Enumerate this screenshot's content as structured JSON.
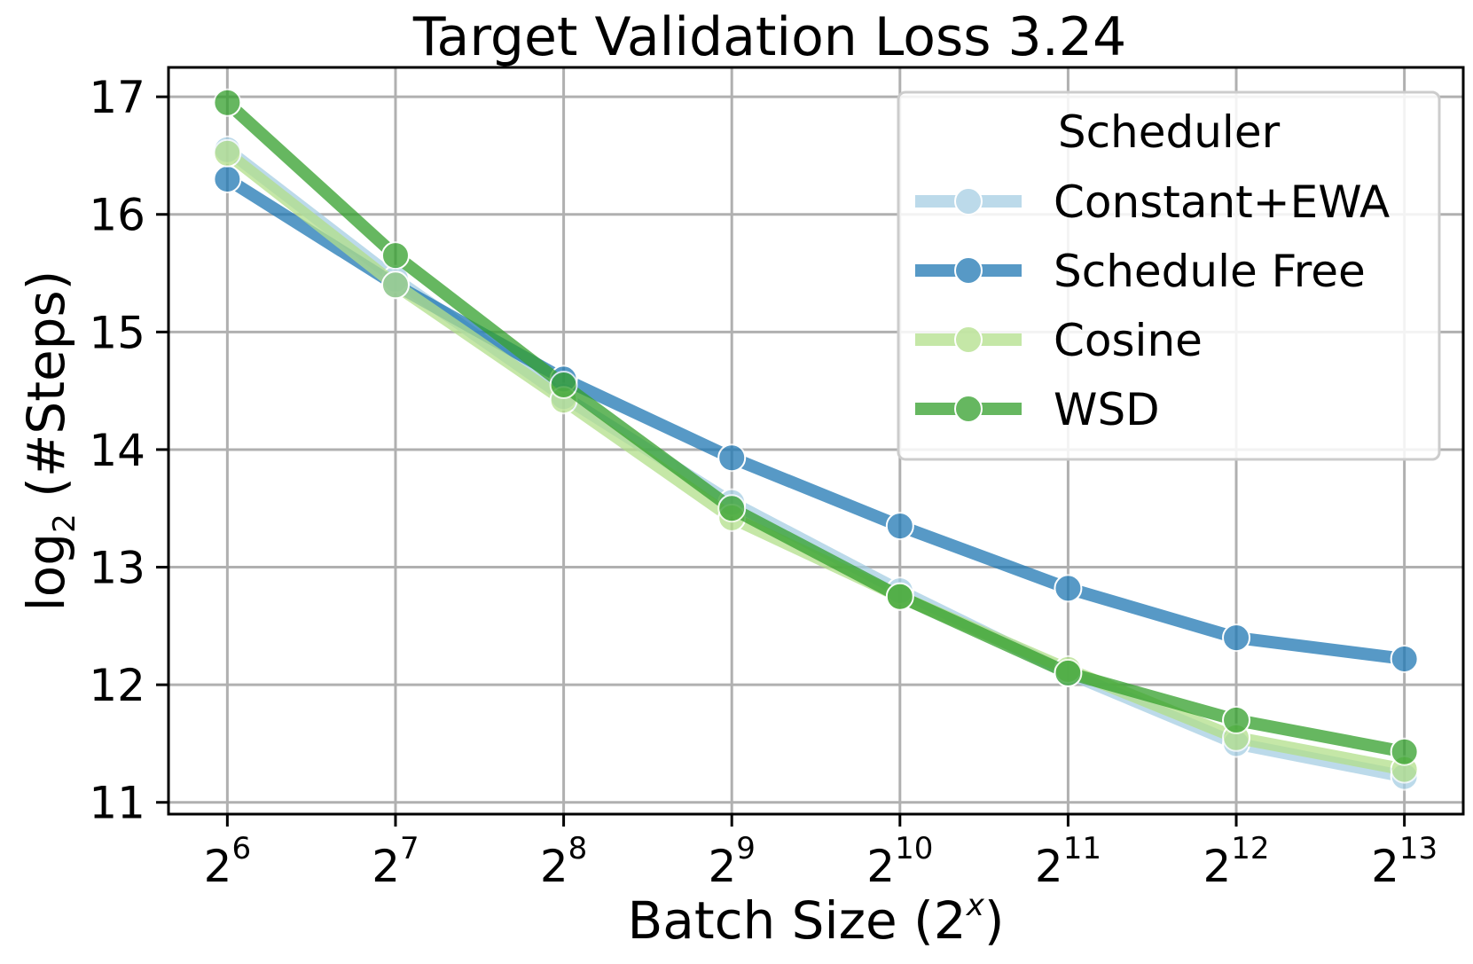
{
  "chart_data": {
    "type": "line",
    "title": "Target Validation Loss 3.24",
    "xlabel": "Batch Size (2",
    "xlabel_sup": "x",
    "xlabel_suffix": ")",
    "ylabel": "log",
    "ylabel_sub": "2",
    "ylabel_suffix": " (#Steps)",
    "x": [
      6,
      7,
      8,
      9,
      10,
      11,
      12,
      13
    ],
    "x_tick_base": "2",
    "y_ticks": [
      11,
      12,
      13,
      14,
      15,
      16,
      17
    ],
    "xlim": [
      5.65,
      13.35
    ],
    "ylim": [
      10.9,
      17.25
    ],
    "grid": true,
    "legend": {
      "title": "Scheduler",
      "placement": "top-right"
    },
    "series": [
      {
        "name": "Constant+EWA",
        "color": "#a6cee3",
        "values": [
          16.55,
          15.45,
          14.45,
          13.55,
          12.8,
          12.1,
          11.5,
          11.22
        ]
      },
      {
        "name": "Schedule Free",
        "color": "#1f78b4",
        "values": [
          16.3,
          15.4,
          14.6,
          13.93,
          13.35,
          12.82,
          12.4,
          12.22
        ]
      },
      {
        "name": "Cosine",
        "color": "#b2df8a",
        "values": [
          16.52,
          15.4,
          14.42,
          13.42,
          12.75,
          12.13,
          11.55,
          11.28
        ]
      },
      {
        "name": "WSD",
        "color": "#33a02c",
        "values": [
          16.95,
          15.65,
          14.55,
          13.5,
          12.75,
          12.1,
          11.7,
          11.43
        ]
      }
    ]
  }
}
